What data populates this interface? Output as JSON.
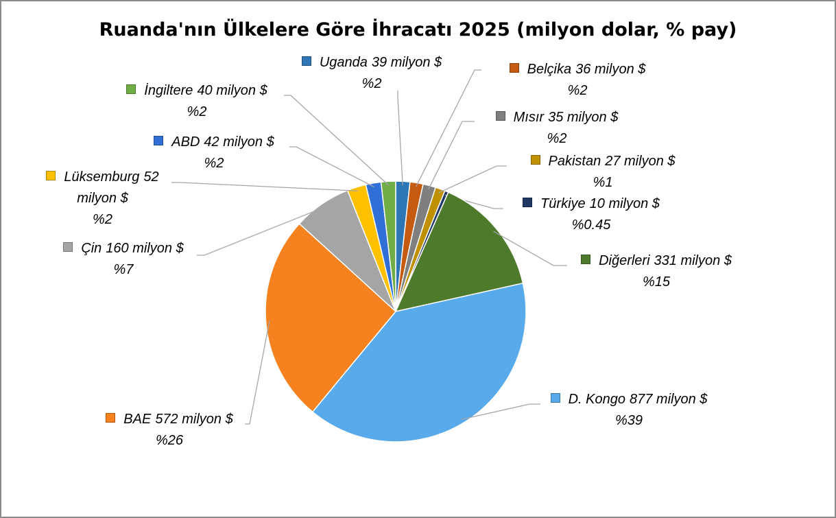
{
  "chart_data": {
    "type": "pie",
    "title": "Ruanda'nın Ülkelere Göre İhracatı 2025 (milyon dolar, % pay)",
    "categories": [
      "Uganda",
      "Belçika",
      "Mısır",
      "Pakistan",
      "Türkiye",
      "Diğerleri",
      "D. Kongo",
      "BAE",
      "Çin",
      "Lüksemburg",
      "ABD",
      "İngiltere"
    ],
    "values": [
      39,
      36,
      35,
      27,
      10,
      331,
      877,
      572,
      160,
      52,
      42,
      40
    ],
    "value_labels": [
      "39 milyon $",
      "36 milyon $",
      "35 milyon $",
      "27 milyon $",
      "10 milyon $",
      "331 milyon $",
      "877 milyon $",
      "572 milyon $",
      "160 milyon $",
      "52 milyon $",
      "42 milyon $",
      "40 milyon $"
    ],
    "percent_labels": [
      "%2",
      "%2",
      "%2",
      "%1",
      "%0.45",
      "%15",
      "%39",
      "%26",
      "%7",
      "%2",
      "%2",
      "%2"
    ],
    "colors": [
      "#2e75b6",
      "#c55a11",
      "#7f7f7f",
      "#bf9000",
      "#203864",
      "#4e7a2c",
      "#58aaea",
      "#f5821f",
      "#a5a5a5",
      "#ffc000",
      "#2f6fd6",
      "#70ad47"
    ]
  }
}
